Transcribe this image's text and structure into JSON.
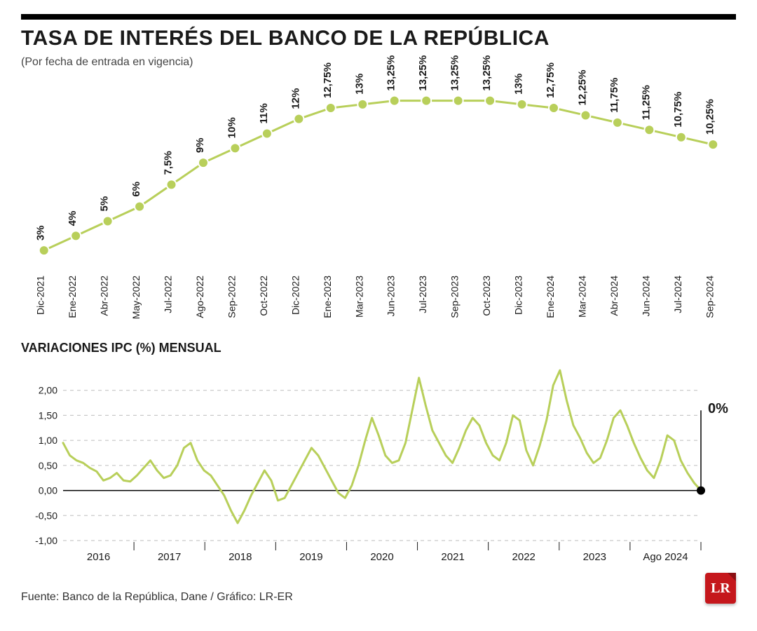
{
  "title": "TASA DE INTERÉS DEL BANCO DE LA REPÚBLICA",
  "subtitle": "(Por fecha de entrada en vigencia)",
  "chart1": {
    "type": "line",
    "line_color": "#b8cf5a",
    "marker_color": "#b8cf5a",
    "marker_stroke": "#ffffff",
    "marker_radius": 7,
    "line_width": 3,
    "label_fontsize": 15,
    "label_fontweight": 700,
    "xlabel_fontsize": 14,
    "background_color": "#ffffff",
    "ymin": 2,
    "ymax": 14,
    "points": [
      {
        "x": "Dic-2021",
        "label": "3%",
        "value": 3.0
      },
      {
        "x": "Ene-2022",
        "label": "4%",
        "value": 4.0
      },
      {
        "x": "Abr-2022",
        "label": "5%",
        "value": 5.0
      },
      {
        "x": "May-2022",
        "label": "6%",
        "value": 6.0
      },
      {
        "x": "Jul-2022",
        "label": "7,5%",
        "value": 7.5
      },
      {
        "x": "Ago-2022",
        "label": "9%",
        "value": 9.0
      },
      {
        "x": "Sep-2022",
        "label": "10%",
        "value": 10.0
      },
      {
        "x": "Oct-2022",
        "label": "11%",
        "value": 11.0
      },
      {
        "x": "Dic-2022",
        "label": "12%",
        "value": 12.0
      },
      {
        "x": "Ene-2023",
        "label": "12,75%",
        "value": 12.75
      },
      {
        "x": "Mar-2023",
        "label": "13%",
        "value": 13.0
      },
      {
        "x": "Jun-2023",
        "label": "13,25%",
        "value": 13.25
      },
      {
        "x": "Jul-2023",
        "label": "13,25%",
        "value": 13.25
      },
      {
        "x": "Sep-2023",
        "label": "13,25%",
        "value": 13.25
      },
      {
        "x": "Oct-2023",
        "label": "13,25%",
        "value": 13.25
      },
      {
        "x": "Dic-2023",
        "label": "13%",
        "value": 13.0
      },
      {
        "x": "Ene-2024",
        "label": "12,75%",
        "value": 12.75
      },
      {
        "x": "Mar-2024",
        "label": "12,25%",
        "value": 12.25
      },
      {
        "x": "Abr-2024",
        "label": "11,75%",
        "value": 11.75
      },
      {
        "x": "Jun-2024",
        "label": "11,25%",
        "value": 11.25
      },
      {
        "x": "Jul-2024",
        "label": "10,75%",
        "value": 10.75
      },
      {
        "x": "Sep-2024",
        "label": "10,25%",
        "value": 10.25
      }
    ]
  },
  "chart2_title": "VARIACIONES IPC (%) MENSUAL",
  "chart2": {
    "type": "line",
    "line_color": "#b8cf5a",
    "line_width": 3,
    "grid_color": "#bdbdbd",
    "zero_line_color": "#000000",
    "grid_dash": "5,5",
    "background_color": "#ffffff",
    "ymin": -1.0,
    "ymax": 2.5,
    "yticks": [
      -1.0,
      -0.5,
      0.0,
      0.5,
      1.0,
      1.5,
      2.0
    ],
    "ytick_labels": [
      "-1,00",
      "-0,50",
      "0,00",
      "0,50",
      "1,00",
      "1,50",
      "2,00"
    ],
    "xlabels": [
      "2016",
      "2017",
      "2018",
      "2019",
      "2020",
      "2021",
      "2022",
      "2023",
      "Ago 2024"
    ],
    "final_point_label": "0%",
    "final_point_value": 0.0,
    "final_point_color": "#000000",
    "final_point_radius": 6,
    "series": [
      0.95,
      0.7,
      0.6,
      0.55,
      0.45,
      0.38,
      0.2,
      0.25,
      0.35,
      0.2,
      0.18,
      0.3,
      0.45,
      0.6,
      0.4,
      0.25,
      0.3,
      0.5,
      0.85,
      0.95,
      0.6,
      0.4,
      0.3,
      0.1,
      -0.1,
      -0.4,
      -0.65,
      -0.4,
      -0.1,
      0.15,
      0.4,
      0.2,
      -0.2,
      -0.15,
      0.1,
      0.35,
      0.6,
      0.85,
      0.7,
      0.45,
      0.2,
      -0.05,
      -0.15,
      0.1,
      0.5,
      1.0,
      1.45,
      1.1,
      0.7,
      0.55,
      0.6,
      0.95,
      1.6,
      2.25,
      1.7,
      1.2,
      0.95,
      0.7,
      0.55,
      0.85,
      1.2,
      1.45,
      1.3,
      0.95,
      0.7,
      0.6,
      0.95,
      1.5,
      1.4,
      0.8,
      0.5,
      0.9,
      1.4,
      2.1,
      2.4,
      1.8,
      1.3,
      1.05,
      0.75,
      0.55,
      0.65,
      1.0,
      1.45,
      1.6,
      1.3,
      0.95,
      0.65,
      0.4,
      0.25,
      0.6,
      1.1,
      1.0,
      0.6,
      0.35,
      0.15,
      0.0
    ]
  },
  "source": "Fuente: Banco de la República, Dane / Gráfico: LR-ER",
  "logo": {
    "text": "LR",
    "bg_color": "#c5171c",
    "fold_color": "#8a0f13"
  }
}
